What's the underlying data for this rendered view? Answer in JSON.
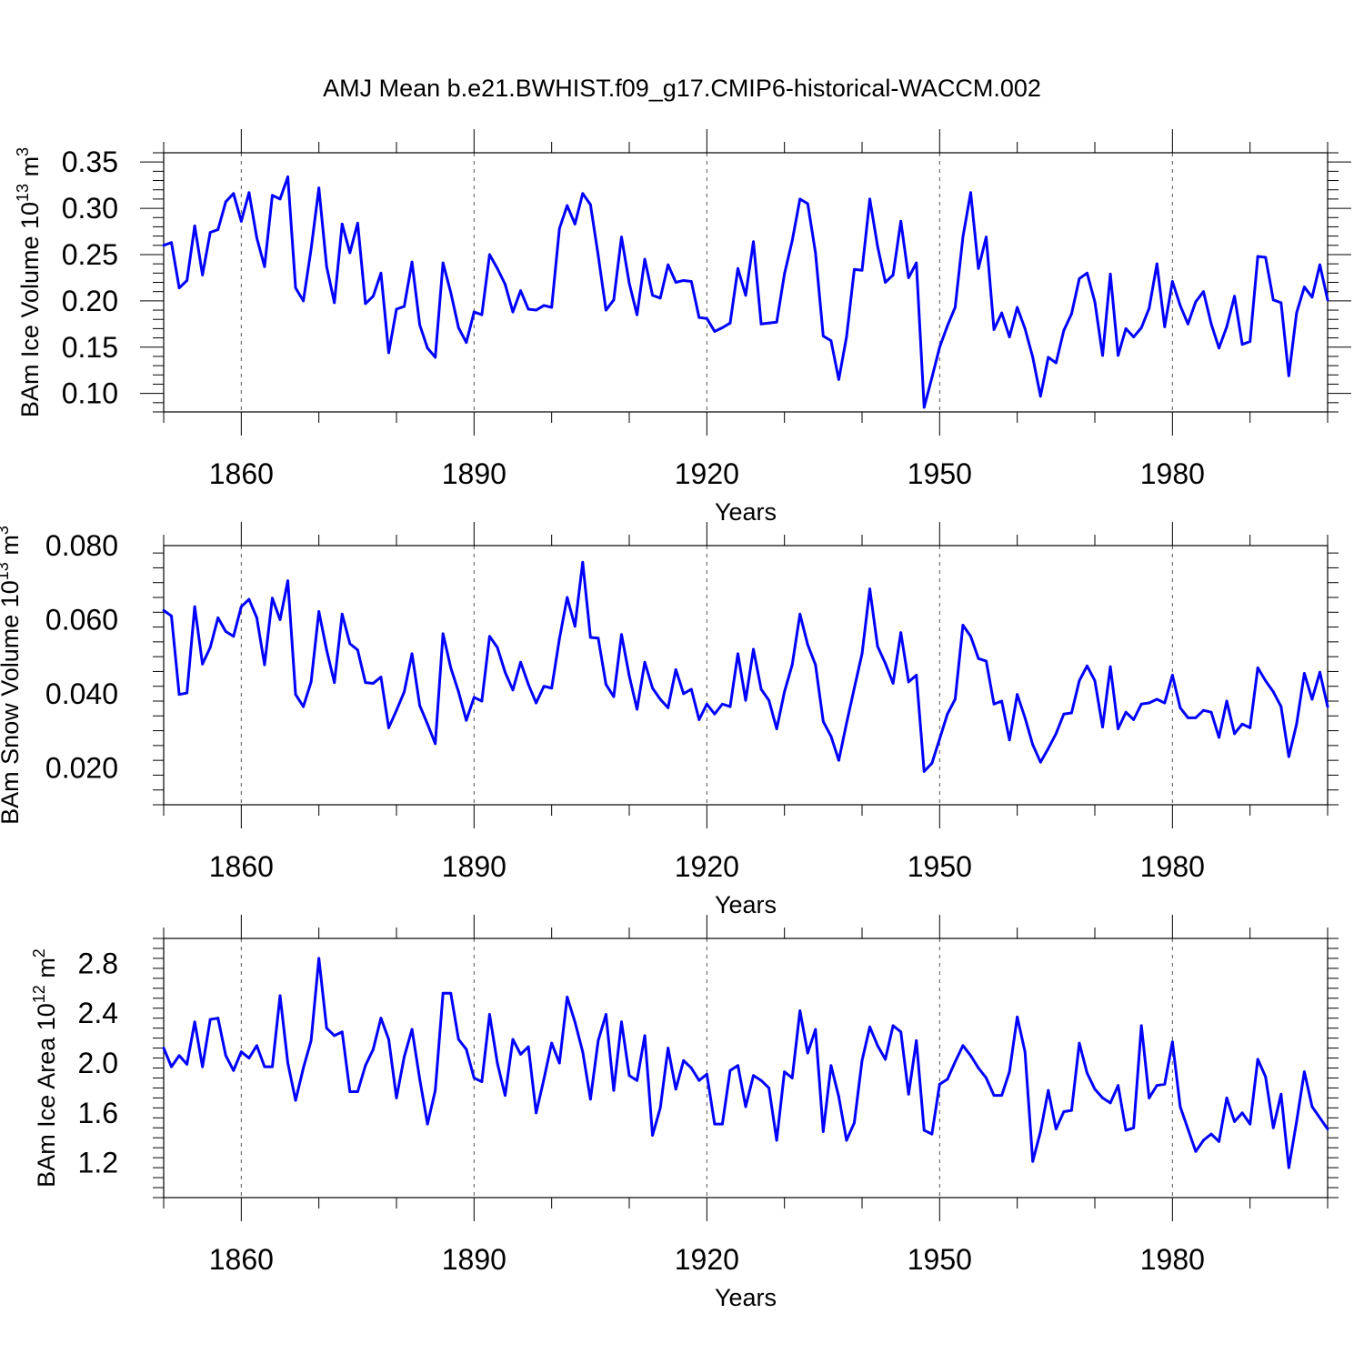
{
  "title": "AMJ Mean b.e21.BWHIST.f09_g17.CMIP6-historical-WACCM.002",
  "colors": {
    "line": "#0000ff",
    "axis": "#000000",
    "grid": "#555555"
  },
  "chart_data": [
    {
      "type": "line",
      "xlabel": "Years",
      "ylabel_text": "BAm Ice Volume 10",
      "ylabel_exp": "13",
      "ylabel_unit": " m",
      "ylabel_unit_exp": "3",
      "xlim": [
        1850,
        2000
      ],
      "ylim": [
        0.08,
        0.36
      ],
      "x_ticks": [
        1860,
        1890,
        1920,
        1950,
        1980
      ],
      "x_tick_labels": [
        "1860",
        "1890",
        "1920",
        "1950",
        "1980"
      ],
      "y_ticks": [
        0.1,
        0.15,
        0.2,
        0.25,
        0.3,
        0.35
      ],
      "y_tick_labels": [
        "0.10",
        "0.15",
        "0.20",
        "0.25",
        "0.30",
        "0.35"
      ],
      "x_start": 1850,
      "values": [
        0.26,
        0.263,
        0.214,
        0.222,
        0.281,
        0.228,
        0.274,
        0.277,
        0.307,
        0.316,
        0.286,
        0.317,
        0.268,
        0.237,
        0.314,
        0.31,
        0.334,
        0.214,
        0.2,
        0.256,
        0.322,
        0.237,
        0.198,
        0.283,
        0.252,
        0.284,
        0.197,
        0.205,
        0.23,
        0.144,
        0.191,
        0.194,
        0.242,
        0.174,
        0.149,
        0.139,
        0.241,
        0.209,
        0.171,
        0.155,
        0.188,
        0.185,
        0.25,
        0.235,
        0.218,
        0.188,
        0.211,
        0.191,
        0.19,
        0.195,
        0.193,
        0.278,
        0.303,
        0.283,
        0.316,
        0.304,
        0.249,
        0.19,
        0.201,
        0.269,
        0.219,
        0.185,
        0.245,
        0.206,
        0.203,
        0.239,
        0.22,
        0.222,
        0.221,
        0.182,
        0.181,
        0.167,
        0.171,
        0.176,
        0.235,
        0.206,
        0.264,
        0.175,
        0.176,
        0.177,
        0.229,
        0.265,
        0.31,
        0.305,
        0.252,
        0.162,
        0.157,
        0.115,
        0.161,
        0.234,
        0.233,
        0.31,
        0.259,
        0.22,
        0.228,
        0.286,
        0.225,
        0.241,
        0.085,
        0.117,
        0.15,
        0.173,
        0.193,
        0.269,
        0.317,
        0.235,
        0.269,
        0.169,
        0.187,
        0.161,
        0.193,
        0.17,
        0.139,
        0.097,
        0.139,
        0.133,
        0.168,
        0.186,
        0.224,
        0.23,
        0.199,
        0.141,
        0.229,
        0.141,
        0.17,
        0.161,
        0.171,
        0.192,
        0.24,
        0.172,
        0.221,
        0.195,
        0.175,
        0.199,
        0.21,
        0.175,
        0.149,
        0.172,
        0.205,
        0.153,
        0.156,
        0.248,
        0.247,
        0.201,
        0.198,
        0.119,
        0.187,
        0.215,
        0.204,
        0.239,
        0.201
      ]
    },
    {
      "type": "line",
      "xlabel": "Years",
      "ylabel_text": "BAm Snow Volume 10",
      "ylabel_exp": "13",
      "ylabel_unit": " m",
      "ylabel_unit_exp": "3",
      "xlim": [
        1850,
        2000
      ],
      "ylim": [
        0.01,
        0.08
      ],
      "x_ticks": [
        1860,
        1890,
        1920,
        1950,
        1980
      ],
      "x_tick_labels": [
        "1860",
        "1890",
        "1920",
        "1950",
        "1980"
      ],
      "y_ticks": [
        0.02,
        0.04,
        0.06,
        0.08
      ],
      "y_tick_labels": [
        "0.020",
        "0.040",
        "0.060",
        "0.080"
      ],
      "x_start": 1850,
      "values": [
        0.0625,
        0.061,
        0.0398,
        0.0402,
        0.0635,
        0.048,
        0.0525,
        0.0605,
        0.0568,
        0.0555,
        0.0635,
        0.0655,
        0.0605,
        0.0478,
        0.0658,
        0.06,
        0.0705,
        0.0398,
        0.0365,
        0.0432,
        0.0622,
        0.0518,
        0.043,
        0.0615,
        0.0535,
        0.0518,
        0.043,
        0.0428,
        0.0445,
        0.0308,
        0.0355,
        0.0405,
        0.0508,
        0.0368,
        0.0318,
        0.0265,
        0.0562,
        0.047,
        0.0405,
        0.0328,
        0.039,
        0.038,
        0.0555,
        0.0525,
        0.0458,
        0.041,
        0.0485,
        0.0425,
        0.0375,
        0.042,
        0.0415,
        0.0548,
        0.066,
        0.0582,
        0.0755,
        0.0552,
        0.055,
        0.0425,
        0.0392,
        0.056,
        0.0448,
        0.0358,
        0.0485,
        0.0415,
        0.0385,
        0.0362,
        0.0465,
        0.04,
        0.0412,
        0.033,
        0.0372,
        0.0345,
        0.0372,
        0.0365,
        0.0508,
        0.0382,
        0.052,
        0.0412,
        0.0382,
        0.0305,
        0.0405,
        0.0478,
        0.0615,
        0.0532,
        0.0478,
        0.0325,
        0.0285,
        0.022,
        0.032,
        0.0415,
        0.0508,
        0.0683,
        0.0528,
        0.0482,
        0.0428,
        0.0565,
        0.0432,
        0.045,
        0.019,
        0.0212,
        0.0278,
        0.0345,
        0.0385,
        0.0585,
        0.0555,
        0.0495,
        0.0488,
        0.0372,
        0.038,
        0.0275,
        0.0398,
        0.0335,
        0.0262,
        0.0215,
        0.0252,
        0.0292,
        0.0345,
        0.0348,
        0.0435,
        0.0475,
        0.0435,
        0.031,
        0.0473,
        0.0305,
        0.035,
        0.033,
        0.0372,
        0.0375,
        0.0385,
        0.0375,
        0.045,
        0.0362,
        0.0335,
        0.0335,
        0.0355,
        0.035,
        0.0282,
        0.038,
        0.0292,
        0.0318,
        0.0308,
        0.047,
        0.0435,
        0.0405,
        0.0365,
        0.023,
        0.0318,
        0.0455,
        0.0385,
        0.0458,
        0.0365
      ]
    },
    {
      "type": "line",
      "xlabel": "Years",
      "ylabel_text": "BAm Ice Area 10",
      "ylabel_exp": "12",
      "ylabel_unit": " m",
      "ylabel_unit_exp": "2",
      "xlim": [
        1850,
        2000
      ],
      "ylim": [
        0.92,
        3.0
      ],
      "x_ticks": [
        1860,
        1890,
        1920,
        1950,
        1980
      ],
      "x_tick_labels": [
        "1860",
        "1890",
        "1920",
        "1950",
        "1980"
      ],
      "y_ticks": [
        1.2,
        1.6,
        2.0,
        2.4,
        2.8
      ],
      "y_tick_labels": [
        "1.2",
        "1.6",
        "2.0",
        "2.4",
        "2.8"
      ],
      "x_start": 1850,
      "values": [
        2.12,
        1.97,
        2.06,
        1.99,
        2.33,
        1.97,
        2.35,
        2.36,
        2.06,
        1.94,
        2.09,
        2.04,
        2.14,
        1.97,
        1.97,
        2.54,
        2.0,
        1.7,
        1.96,
        2.18,
        2.84,
        2.28,
        2.22,
        2.25,
        1.77,
        1.77,
        1.98,
        2.11,
        2.36,
        2.19,
        1.72,
        2.05,
        2.27,
        1.87,
        1.51,
        1.78,
        2.56,
        2.56,
        2.19,
        2.11,
        1.88,
        1.85,
        2.39,
        2.0,
        1.74,
        2.19,
        2.07,
        2.13,
        1.6,
        1.87,
        2.16,
        2.0,
        2.53,
        2.33,
        2.09,
        1.71,
        2.18,
        2.39,
        1.78,
        2.33,
        1.9,
        1.86,
        2.22,
        1.42,
        1.64,
        2.12,
        1.79,
        2.02,
        1.96,
        1.86,
        1.91,
        1.51,
        1.51,
        1.94,
        1.98,
        1.65,
        1.9,
        1.86,
        1.8,
        1.38,
        1.93,
        1.88,
        2.42,
        2.08,
        2.27,
        1.45,
        1.98,
        1.73,
        1.38,
        1.52,
        2.02,
        2.29,
        2.14,
        2.03,
        2.3,
        2.25,
        1.75,
        2.18,
        1.46,
        1.43,
        1.83,
        1.87,
        2.01,
        2.14,
        2.06,
        1.96,
        1.88,
        1.74,
        1.74,
        1.93,
        2.37,
        2.09,
        1.21,
        1.45,
        1.78,
        1.47,
        1.61,
        1.62,
        2.16,
        1.92,
        1.79,
        1.72,
        1.68,
        1.82,
        1.46,
        1.48,
        2.3,
        1.72,
        1.82,
        1.83,
        2.17,
        1.65,
        1.47,
        1.29,
        1.38,
        1.43,
        1.37,
        1.72,
        1.53,
        1.6,
        1.51,
        2.03,
        1.89,
        1.48,
        1.75,
        1.16,
        1.53,
        1.93,
        1.65,
        1.56,
        1.47
      ]
    }
  ]
}
